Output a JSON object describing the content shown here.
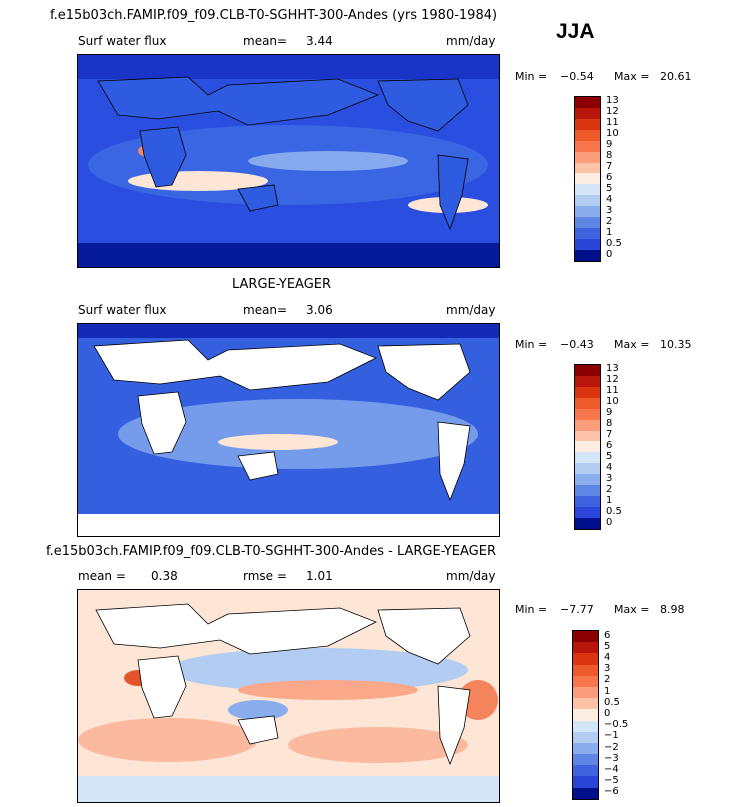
{
  "season": "JJA",
  "panels": [
    {
      "id": "model",
      "title": "f.e15b03ch.FAMIP.f09_f09.CLB-T0-SGHHT-300-Andes (yrs 1980-1984)",
      "variable": "Surf water flux",
      "stat1_label": "mean=",
      "stat1_value": "3.44",
      "units": "mm/day",
      "min_label": "Min =",
      "min_value": "−0.54",
      "max_label": "Max =",
      "max_value": "20.61",
      "colorbar_levels": [
        "13",
        "12",
        "11",
        "10",
        "9",
        "8",
        "7",
        "6",
        "5",
        "4",
        "3",
        "2",
        "1",
        "0.5",
        "0"
      ]
    },
    {
      "id": "obs",
      "title": "LARGE-YEAGER",
      "variable": "Surf water flux",
      "stat1_label": "mean=",
      "stat1_value": "3.06",
      "units": "mm/day",
      "min_label": "Min =",
      "min_value": "−0.43",
      "max_label": "Max =",
      "max_value": "10.35",
      "colorbar_levels": [
        "13",
        "12",
        "11",
        "10",
        "9",
        "8",
        "7",
        "6",
        "5",
        "4",
        "3",
        "2",
        "1",
        "0.5",
        "0"
      ]
    },
    {
      "id": "diff",
      "title": "f.e15b03ch.FAMIP.f09_f09.CLB-T0-SGHHT-300-Andes - LARGE-YEAGER",
      "stat1_label": "mean =",
      "stat1_value": "0.38",
      "stat2_label": "rmse =",
      "stat2_value": "1.01",
      "units": "mm/day",
      "min_label": "Min =",
      "min_value": "−7.77",
      "max_label": "Max =",
      "max_value": "8.98",
      "colorbar_levels": [
        "6",
        "5",
        "4",
        "3",
        "2",
        "1",
        "0.5",
        "0",
        "−0.5",
        "−1",
        "−2",
        "−3",
        "−4",
        "−5",
        "−6"
      ]
    }
  ],
  "colors": {
    "abs_scale": [
      "#8b0000",
      "#b8150b",
      "#d93510",
      "#ee5a2a",
      "#f7774d",
      "#fb9c7a",
      "#fdc3a8",
      "#feeee2",
      "#d5e5f8",
      "#b3cdf2",
      "#8aaeed",
      "#5e86e5",
      "#3d63df",
      "#2a46d8",
      "#000f8a"
    ],
    "diff_scale": [
      "#8b0000",
      "#b8150b",
      "#d93510",
      "#ee5a2a",
      "#f7774d",
      "#fb9c7a",
      "#fdc3a8",
      "#feeee2",
      "#d5e5f8",
      "#b3cdf2",
      "#8aaeed",
      "#5e86e5",
      "#3d63df",
      "#2a46d8",
      "#000f8a"
    ]
  },
  "chart_data": [
    {
      "type": "heatmap",
      "title": "f.e15b03ch.FAMIP.f09_f09.CLB-T0-SGHHT-300-Andes (yrs 1980-1984)",
      "subtitle": "Surf water flux",
      "units": "mm/day",
      "mean": 3.44,
      "min": -0.54,
      "max": 20.61,
      "levels": [
        0,
        0.5,
        1,
        2,
        3,
        4,
        5,
        6,
        7,
        8,
        9,
        10,
        11,
        12,
        13
      ]
    },
    {
      "type": "heatmap",
      "title": "LARGE-YEAGER",
      "subtitle": "Surf water flux",
      "units": "mm/day",
      "mean": 3.06,
      "min": -0.43,
      "max": 10.35,
      "levels": [
        0,
        0.5,
        1,
        2,
        3,
        4,
        5,
        6,
        7,
        8,
        9,
        10,
        11,
        12,
        13
      ]
    },
    {
      "type": "heatmap",
      "title": "f.e15b03ch.FAMIP.f09_f09.CLB-T0-SGHHT-300-Andes - LARGE-YEAGER",
      "units": "mm/day",
      "mean": 0.38,
      "rmse": 1.01,
      "min": -7.77,
      "max": 8.98,
      "levels": [
        -6,
        -5,
        -4,
        -3,
        -2,
        -1,
        -0.5,
        0,
        0.5,
        1,
        2,
        3,
        4,
        5,
        6
      ]
    }
  ]
}
